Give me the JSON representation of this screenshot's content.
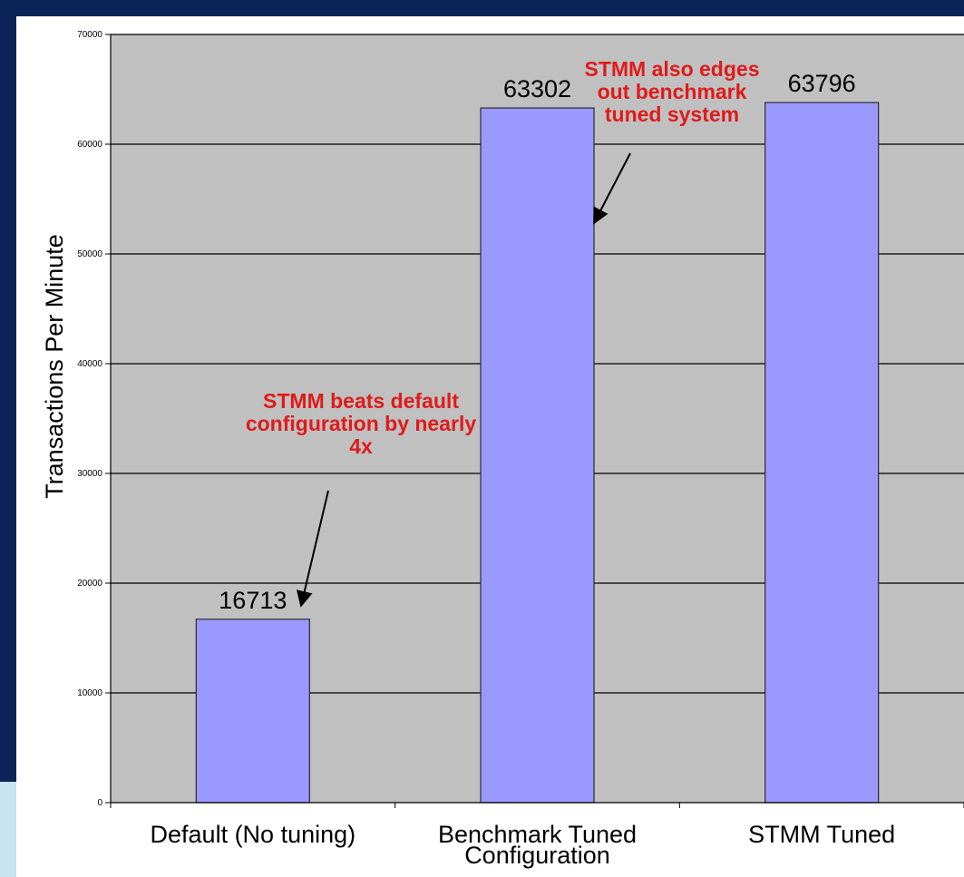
{
  "theme": {
    "frame_dark": "#0b2457",
    "frame_light": "#c6e3ef",
    "plot_bg": "#c0c0c0",
    "bar_fill": "#9999ff",
    "bar_stroke": "#2b2b2b",
    "annotation_color": "#e01a1a"
  },
  "chart_data": {
    "type": "bar",
    "categories": [
      [
        "Default (No tuning)"
      ],
      [
        "Benchmark Tuned",
        "Configuration"
      ],
      [
        "STMM Tuned"
      ]
    ],
    "values": [
      16713,
      63302,
      63796
    ],
    "value_labels": [
      "16713",
      "63302",
      "63796"
    ],
    "ylabel": "Transactions Per Minute",
    "ylim": [
      0,
      70000
    ],
    "yticks": [
      0,
      10000,
      20000,
      30000,
      40000,
      50000,
      60000,
      70000
    ],
    "grid": true,
    "annotations": [
      {
        "lines": [
          "STMM beats default",
          "configuration by nearly",
          "4x"
        ],
        "points_to_category": 0
      },
      {
        "lines": [
          "STMM also edges",
          "out benchmark",
          "tuned system"
        ],
        "points_to_category": 1
      }
    ]
  }
}
